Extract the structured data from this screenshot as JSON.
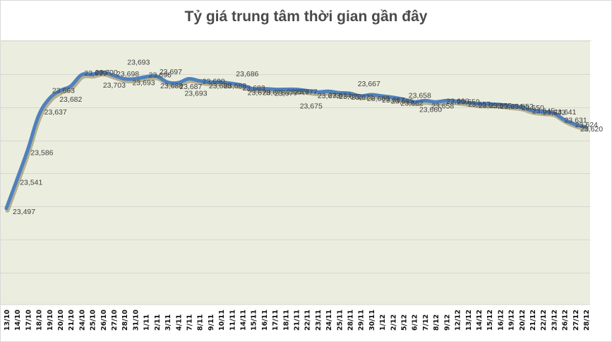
{
  "title": "Tỷ giá trung tâm thời gian gần đây",
  "colors": {
    "plot_background": "#ebeedf",
    "gridline": "#d6d6d0",
    "line": "#4f81bd",
    "shadow": "#8a8050",
    "title": "#4a4a4a",
    "data_label": "#404040",
    "axis_label": "#111111"
  },
  "chart_data": {
    "type": "line",
    "title": "Tỷ giá trung tâm thời gian gần đây",
    "xlabel": "",
    "ylabel": "",
    "ylim": [
      23400,
      23750
    ],
    "grid": true,
    "y_gridlines": [
      23400,
      23450,
      23500,
      23550,
      23600,
      23650,
      23700
    ],
    "y_tick_labels_visible": false,
    "legend": "none",
    "categories": [
      "13/10",
      "14/10",
      "17/10",
      "18/10",
      "19/10",
      "20/10",
      "21/10",
      "24/10",
      "25/10",
      "26/10",
      "27/10",
      "28/10",
      "31/10",
      "1/11",
      "2/11",
      "3/11",
      "4/11",
      "7/11",
      "8/11",
      "9/11",
      "10/11",
      "11/11",
      "14/11",
      "15/11",
      "16/11",
      "17/11",
      "18/11",
      "21/11",
      "22/11",
      "23/11",
      "24/11",
      "25/11",
      "28/11",
      "29/11",
      "30/11",
      "1/12",
      "2/12",
      "5/12",
      "6/12",
      "7/12",
      "8/12",
      "9/12",
      "12/12",
      "13/12",
      "14/12",
      "15/12",
      "16/12",
      "19/12",
      "20/12",
      "21/12",
      "22/12",
      "23/12",
      "26/12",
      "27/12",
      "28/12"
    ],
    "series": [
      {
        "name": "Tỷ giá trung tâm",
        "values": [
          23497,
          23541,
          23586,
          23637,
          23663,
          23675,
          23682,
          23699,
          23700,
          23703,
          23698,
          23693,
          23693,
          23696,
          23697,
          23688,
          23687,
          23693,
          23690,
          23688,
          23688,
          23686,
          23683,
          23678,
          23678,
          23677,
          23677,
          23677,
          23675,
          23673,
          23674,
          23672,
          23671,
          23667,
          23669,
          23667,
          23665,
          23662,
          23658,
          23660,
          23658,
          23660,
          23659,
          23657,
          23655,
          23655,
          23654,
          23652,
          23650,
          23645,
          23643,
          23641,
          23631,
          23624,
          23620
        ]
      }
    ],
    "data_labels": [
      "23,497",
      "23,541",
      "23,586",
      "23,637",
      "23,663",
      "23,675",
      "23,682",
      "23,699",
      "23,700",
      "23,703",
      "23,698",
      "23,693",
      "23,693",
      "23,696",
      "23,697",
      "23,688",
      "23,687",
      "23,693",
      "23,690",
      "23,688",
      "23,688",
      "23,686",
      "23,683",
      "23,678",
      "23,678",
      "23,677",
      "23,677",
      "23,677",
      "23,675",
      "23,673",
      "23,674",
      "23,672",
      "23,671",
      "23,667",
      "23,669",
      "23,667",
      "23,665",
      "23,662",
      "23,658",
      "23,660",
      "23,658",
      "23,660",
      "23,659",
      "23,657",
      "23,655",
      "23,655",
      "23,654",
      "23,652",
      "23,650",
      "23,645",
      "23,643",
      "23,641",
      "23,631",
      "23,624",
      "23,620"
    ]
  }
}
